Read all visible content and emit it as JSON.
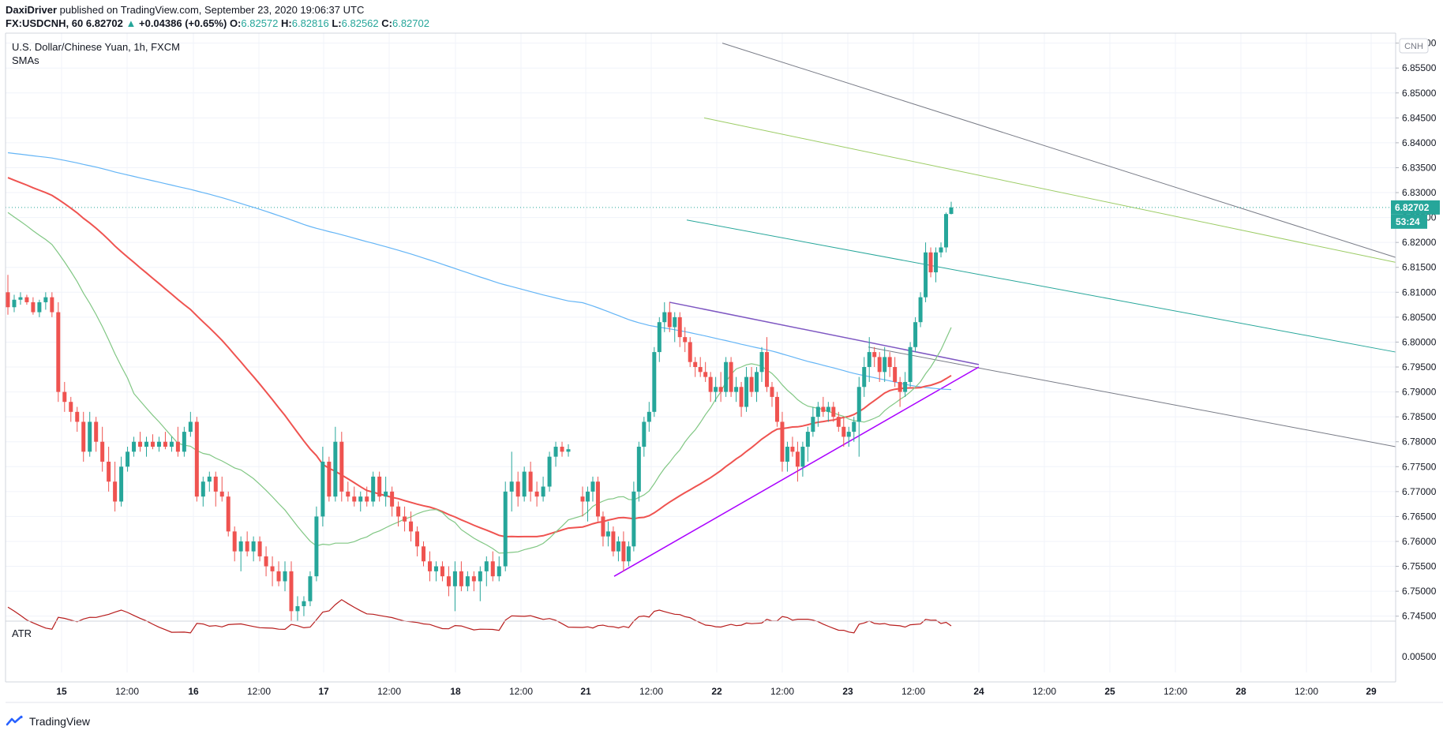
{
  "header": {
    "author": "DaxiDriver",
    "published": "published on TradingView.com, September 23, 2020 19:06:37 UTC",
    "symbol": "FX:USDCNH, 60",
    "last": "6.82702",
    "change": "+0.04386 (+0.65%)",
    "o_label": "O:",
    "o": "6.82572",
    "h_label": "H:",
    "h": "6.82816",
    "l_label": "L:",
    "l": "6.82562",
    "c_label": "C:",
    "c": "6.82702"
  },
  "legend": {
    "title": "U.S. Dollar/Chinese Yuan, 1h, FXCM",
    "indicator": "SMAs"
  },
  "atr_label": "ATR",
  "currency_badge": "CNH",
  "price_badge": "6.82702",
  "countdown_badge": "53:24",
  "footer": {
    "brand": "TradingView"
  },
  "colors": {
    "up": "#26a69a",
    "down": "#ef5350",
    "sma_fast": "#81c784",
    "sma_mid": "#ef5350",
    "sma_slow": "#64b5f6",
    "atr": "#b71c1c",
    "trend_upper": "#7e57c2",
    "trend_lower": "#aa00ff",
    "channel_grey": "#787b86",
    "channel_green": "#9ccc65",
    "channel_teal": "#26a69a"
  },
  "chart_data": {
    "type": "candlestick",
    "title": "U.S. Dollar/Chinese Yuan, 1h, FXCM",
    "ylim": [
      6.744,
      6.862
    ],
    "y_ticks": [
      "6.74500",
      "6.75000",
      "6.75500",
      "6.76000",
      "6.76500",
      "6.77000",
      "6.77500",
      "6.78000",
      "6.78500",
      "6.79000",
      "6.79500",
      "6.80000",
      "6.80500",
      "6.81000",
      "6.81500",
      "6.82000",
      "6.82500",
      "6.83000",
      "6.83500",
      "6.84000",
      "6.84500",
      "6.85000",
      "6.85500",
      "6.86000"
    ],
    "x_ticks": [
      "15",
      "12:00",
      "16",
      "12:00",
      "17",
      "12:00",
      "18",
      "12:00",
      "21",
      "12:00",
      "22",
      "12:00",
      "23",
      "12:00",
      "24",
      "12:00",
      "25",
      "12:00",
      "28",
      "12:00",
      "29"
    ],
    "atr_tick": "0.00500",
    "candles": [
      {
        "o": 6.81,
        "h": 6.8135,
        "l": 6.8055,
        "c": 6.807
      },
      {
        "o": 6.807,
        "h": 6.8095,
        "l": 6.806,
        "c": 6.8085
      },
      {
        "o": 6.8085,
        "h": 6.81,
        "l": 6.8075,
        "c": 6.809
      },
      {
        "o": 6.809,
        "h": 6.8095,
        "l": 6.8075,
        "c": 6.808
      },
      {
        "o": 6.808,
        "h": 6.809,
        "l": 6.8055,
        "c": 6.806
      },
      {
        "o": 6.806,
        "h": 6.8085,
        "l": 6.805,
        "c": 6.808
      },
      {
        "o": 6.808,
        "h": 6.81,
        "l": 6.8065,
        "c": 6.809
      },
      {
        "o": 6.809,
        "h": 6.81,
        "l": 6.805,
        "c": 6.806
      },
      {
        "o": 6.806,
        "h": 6.808,
        "l": 6.788,
        "c": 6.79
      },
      {
        "o": 6.79,
        "h": 6.792,
        "l": 6.786,
        "c": 6.788
      },
      {
        "o": 6.788,
        "h": 6.789,
        "l": 6.784,
        "c": 6.786
      },
      {
        "o": 6.786,
        "h": 6.787,
        "l": 6.782,
        "c": 6.784
      },
      {
        "o": 6.784,
        "h": 6.786,
        "l": 6.776,
        "c": 6.778
      },
      {
        "o": 6.778,
        "h": 6.786,
        "l": 6.777,
        "c": 6.784
      },
      {
        "o": 6.784,
        "h": 6.785,
        "l": 6.778,
        "c": 6.78
      },
      {
        "o": 6.78,
        "h": 6.783,
        "l": 6.774,
        "c": 6.776
      },
      {
        "o": 6.776,
        "h": 6.779,
        "l": 6.77,
        "c": 6.772
      },
      {
        "o": 6.772,
        "h": 6.776,
        "l": 6.766,
        "c": 6.768
      },
      {
        "o": 6.768,
        "h": 6.777,
        "l": 6.767,
        "c": 6.775
      },
      {
        "o": 6.775,
        "h": 6.779,
        "l": 6.774,
        "c": 6.778
      },
      {
        "o": 6.778,
        "h": 6.781,
        "l": 6.777,
        "c": 6.78
      },
      {
        "o": 6.78,
        "h": 6.782,
        "l": 6.778,
        "c": 6.779
      },
      {
        "o": 6.779,
        "h": 6.781,
        "l": 6.777,
        "c": 6.78
      },
      {
        "o": 6.78,
        "h": 6.7815,
        "l": 6.7785,
        "c": 6.779
      },
      {
        "o": 6.779,
        "h": 6.781,
        "l": 6.778,
        "c": 6.78
      },
      {
        "o": 6.78,
        "h": 6.782,
        "l": 6.7785,
        "c": 6.779
      },
      {
        "o": 6.779,
        "h": 6.781,
        "l": 6.778,
        "c": 6.78
      },
      {
        "o": 6.78,
        "h": 6.783,
        "l": 6.777,
        "c": 6.778
      },
      {
        "o": 6.778,
        "h": 6.783,
        "l": 6.777,
        "c": 6.782
      },
      {
        "o": 6.782,
        "h": 6.786,
        "l": 6.781,
        "c": 6.784
      },
      {
        "o": 6.784,
        "h": 6.785,
        "l": 6.768,
        "c": 6.769
      },
      {
        "o": 6.769,
        "h": 6.773,
        "l": 6.767,
        "c": 6.772
      },
      {
        "o": 6.772,
        "h": 6.774,
        "l": 6.77,
        "c": 6.773
      },
      {
        "o": 6.773,
        "h": 6.774,
        "l": 6.767,
        "c": 6.77
      },
      {
        "o": 6.77,
        "h": 6.773,
        "l": 6.768,
        "c": 6.769
      },
      {
        "o": 6.769,
        "h": 6.77,
        "l": 6.761,
        "c": 6.762
      },
      {
        "o": 6.762,
        "h": 6.763,
        "l": 6.756,
        "c": 6.758
      },
      {
        "o": 6.758,
        "h": 6.761,
        "l": 6.754,
        "c": 6.76
      },
      {
        "o": 6.76,
        "h": 6.762,
        "l": 6.757,
        "c": 6.758
      },
      {
        "o": 6.758,
        "h": 6.761,
        "l": 6.756,
        "c": 6.76
      },
      {
        "o": 6.76,
        "h": 6.761,
        "l": 6.756,
        "c": 6.757
      },
      {
        "o": 6.757,
        "h": 6.759,
        "l": 6.753,
        "c": 6.755
      },
      {
        "o": 6.755,
        "h": 6.757,
        "l": 6.751,
        "c": 6.754
      },
      {
        "o": 6.754,
        "h": 6.756,
        "l": 6.751,
        "c": 6.752
      },
      {
        "o": 6.752,
        "h": 6.756,
        "l": 6.75,
        "c": 6.754
      },
      {
        "o": 6.754,
        "h": 6.756,
        "l": 6.744,
        "c": 6.746
      },
      {
        "o": 6.746,
        "h": 6.749,
        "l": 6.744,
        "c": 6.747
      },
      {
        "o": 6.747,
        "h": 6.749,
        "l": 6.745,
        "c": 6.748
      },
      {
        "o": 6.748,
        "h": 6.754,
        "l": 6.747,
        "c": 6.753
      },
      {
        "o": 6.753,
        "h": 6.767,
        "l": 6.752,
        "c": 6.765
      },
      {
        "o": 6.765,
        "h": 6.779,
        "l": 6.763,
        "c": 6.776
      },
      {
        "o": 6.776,
        "h": 6.777,
        "l": 6.768,
        "c": 6.769
      },
      {
        "o": 6.769,
        "h": 6.783,
        "l": 6.768,
        "c": 6.78
      },
      {
        "o": 6.78,
        "h": 6.782,
        "l": 6.768,
        "c": 6.77
      },
      {
        "o": 6.77,
        "h": 6.772,
        "l": 6.768,
        "c": 6.769
      },
      {
        "o": 6.769,
        "h": 6.771,
        "l": 6.767,
        "c": 6.768
      },
      {
        "o": 6.768,
        "h": 6.77,
        "l": 6.766,
        "c": 6.769
      },
      {
        "o": 6.769,
        "h": 6.771,
        "l": 6.767,
        "c": 6.768
      },
      {
        "o": 6.768,
        "h": 6.774,
        "l": 6.767,
        "c": 6.773
      },
      {
        "o": 6.773,
        "h": 6.774,
        "l": 6.768,
        "c": 6.769
      },
      {
        "o": 6.769,
        "h": 6.773,
        "l": 6.767,
        "c": 6.77
      },
      {
        "o": 6.77,
        "h": 6.771,
        "l": 6.765,
        "c": 6.767
      },
      {
        "o": 6.767,
        "h": 6.768,
        "l": 6.763,
        "c": 6.765
      },
      {
        "o": 6.765,
        "h": 6.767,
        "l": 6.762,
        "c": 6.764
      },
      {
        "o": 6.764,
        "h": 6.766,
        "l": 6.76,
        "c": 6.762
      },
      {
        "o": 6.762,
        "h": 6.763,
        "l": 6.757,
        "c": 6.759
      },
      {
        "o": 6.759,
        "h": 6.76,
        "l": 6.755,
        "c": 6.756
      },
      {
        "o": 6.756,
        "h": 6.758,
        "l": 6.752,
        "c": 6.754
      },
      {
        "o": 6.754,
        "h": 6.756,
        "l": 6.752,
        "c": 6.755
      },
      {
        "o": 6.755,
        "h": 6.756,
        "l": 6.752,
        "c": 6.753
      },
      {
        "o": 6.753,
        "h": 6.755,
        "l": 6.749,
        "c": 6.751
      },
      {
        "o": 6.751,
        "h": 6.756,
        "l": 6.746,
        "c": 6.754
      },
      {
        "o": 6.754,
        "h": 6.756,
        "l": 6.75,
        "c": 6.751
      },
      {
        "o": 6.751,
        "h": 6.754,
        "l": 6.75,
        "c": 6.753
      },
      {
        "o": 6.753,
        "h": 6.754,
        "l": 6.75,
        "c": 6.752
      },
      {
        "o": 6.752,
        "h": 6.755,
        "l": 6.748,
        "c": 6.754
      },
      {
        "o": 6.754,
        "h": 6.757,
        "l": 6.751,
        "c": 6.756
      },
      {
        "o": 6.756,
        "h": 6.758,
        "l": 6.752,
        "c": 6.753
      },
      {
        "o": 6.753,
        "h": 6.757,
        "l": 6.752,
        "c": 6.755
      },
      {
        "o": 6.755,
        "h": 6.772,
        "l": 6.754,
        "c": 6.77
      },
      {
        "o": 6.77,
        "h": 6.778,
        "l": 6.766,
        "c": 6.772
      },
      {
        "o": 6.772,
        "h": 6.774,
        "l": 6.767,
        "c": 6.769
      },
      {
        "o": 6.769,
        "h": 6.775,
        "l": 6.768,
        "c": 6.774
      },
      {
        "o": 6.774,
        "h": 6.776,
        "l": 6.768,
        "c": 6.77
      },
      {
        "o": 6.77,
        "h": 6.772,
        "l": 6.767,
        "c": 6.769
      },
      {
        "o": 6.769,
        "h": 6.773,
        "l": 6.768,
        "c": 6.771
      },
      {
        "o": 6.771,
        "h": 6.778,
        "l": 6.77,
        "c": 6.777
      },
      {
        "o": 6.777,
        "h": 6.78,
        "l": 6.775,
        "c": 6.779
      },
      {
        "o": 6.779,
        "h": 6.78,
        "l": 6.777,
        "c": 6.778
      },
      {
        "o": 6.778,
        "h": 6.7795,
        "l": 6.777,
        "c": 6.7785
      },
      {
        "o": 6.769,
        "h": 6.771,
        "l": 6.765,
        "c": 6.768
      },
      {
        "o": 6.768,
        "h": 6.771,
        "l": 6.764,
        "c": 6.77
      },
      {
        "o": 6.77,
        "h": 6.773,
        "l": 6.768,
        "c": 6.772
      },
      {
        "o": 6.772,
        "h": 6.773,
        "l": 6.764,
        "c": 6.765
      },
      {
        "o": 6.765,
        "h": 6.766,
        "l": 6.759,
        "c": 6.761
      },
      {
        "o": 6.761,
        "h": 6.764,
        "l": 6.759,
        "c": 6.762
      },
      {
        "o": 6.762,
        "h": 6.763,
        "l": 6.757,
        "c": 6.758
      },
      {
        "o": 6.758,
        "h": 6.761,
        "l": 6.756,
        "c": 6.76
      },
      {
        "o": 6.76,
        "h": 6.762,
        "l": 6.754,
        "c": 6.756
      },
      {
        "o": 6.756,
        "h": 6.76,
        "l": 6.755,
        "c": 6.759
      },
      {
        "o": 6.759,
        "h": 6.772,
        "l": 6.758,
        "c": 6.77
      },
      {
        "o": 6.77,
        "h": 6.78,
        "l": 6.768,
        "c": 6.779
      },
      {
        "o": 6.779,
        "h": 6.785,
        "l": 6.777,
        "c": 6.784
      },
      {
        "o": 6.784,
        "h": 6.788,
        "l": 6.782,
        "c": 6.786
      },
      {
        "o": 6.786,
        "h": 6.799,
        "l": 6.785,
        "c": 6.798
      },
      {
        "o": 6.798,
        "h": 6.805,
        "l": 6.796,
        "c": 6.804
      },
      {
        "o": 6.804,
        "h": 6.808,
        "l": 6.802,
        "c": 6.806
      },
      {
        "o": 6.806,
        "h": 6.808,
        "l": 6.802,
        "c": 6.803
      },
      {
        "o": 6.803,
        "h": 6.806,
        "l": 6.8,
        "c": 6.805
      },
      {
        "o": 6.805,
        "h": 6.806,
        "l": 6.799,
        "c": 6.801
      },
      {
        "o": 6.801,
        "h": 6.803,
        "l": 6.798,
        "c": 6.8
      },
      {
        "o": 6.8,
        "h": 6.801,
        "l": 6.795,
        "c": 6.796
      },
      {
        "o": 6.796,
        "h": 6.797,
        "l": 6.793,
        "c": 6.795
      },
      {
        "o": 6.795,
        "h": 6.797,
        "l": 6.793,
        "c": 6.794
      },
      {
        "o": 6.794,
        "h": 6.796,
        "l": 6.792,
        "c": 6.793
      },
      {
        "o": 6.793,
        "h": 6.794,
        "l": 6.788,
        "c": 6.79
      },
      {
        "o": 6.79,
        "h": 6.793,
        "l": 6.788,
        "c": 6.791
      },
      {
        "o": 6.791,
        "h": 6.794,
        "l": 6.788,
        "c": 6.79
      },
      {
        "o": 6.79,
        "h": 6.797,
        "l": 6.789,
        "c": 6.796
      },
      {
        "o": 6.796,
        "h": 6.797,
        "l": 6.789,
        "c": 6.79
      },
      {
        "o": 6.79,
        "h": 6.793,
        "l": 6.788,
        "c": 6.791
      },
      {
        "o": 6.791,
        "h": 6.792,
        "l": 6.785,
        "c": 6.787
      },
      {
        "o": 6.787,
        "h": 6.795,
        "l": 6.786,
        "c": 6.793
      },
      {
        "o": 6.793,
        "h": 6.795,
        "l": 6.789,
        "c": 6.79
      },
      {
        "o": 6.79,
        "h": 6.795,
        "l": 6.788,
        "c": 6.794
      },
      {
        "o": 6.794,
        "h": 6.799,
        "l": 6.792,
        "c": 6.798
      },
      {
        "o": 6.798,
        "h": 6.801,
        "l": 6.79,
        "c": 6.791
      },
      {
        "o": 6.791,
        "h": 6.792,
        "l": 6.787,
        "c": 6.789
      },
      {
        "o": 6.789,
        "h": 6.79,
        "l": 6.783,
        "c": 6.784
      },
      {
        "o": 6.784,
        "h": 6.786,
        "l": 6.774,
        "c": 6.776
      },
      {
        "o": 6.776,
        "h": 6.78,
        "l": 6.774,
        "c": 6.779
      },
      {
        "o": 6.779,
        "h": 6.781,
        "l": 6.777,
        "c": 6.778
      },
      {
        "o": 6.778,
        "h": 6.78,
        "l": 6.772,
        "c": 6.775
      },
      {
        "o": 6.775,
        "h": 6.78,
        "l": 6.773,
        "c": 6.779
      },
      {
        "o": 6.779,
        "h": 6.783,
        "l": 6.776,
        "c": 6.782
      },
      {
        "o": 6.782,
        "h": 6.787,
        "l": 6.781,
        "c": 6.785
      },
      {
        "o": 6.785,
        "h": 6.788,
        "l": 6.783,
        "c": 6.787
      },
      {
        "o": 6.787,
        "h": 6.789,
        "l": 6.785,
        "c": 6.786
      },
      {
        "o": 6.786,
        "h": 6.788,
        "l": 6.784,
        "c": 6.787
      },
      {
        "o": 6.787,
        "h": 6.788,
        "l": 6.784,
        "c": 6.785
      },
      {
        "o": 6.785,
        "h": 6.786,
        "l": 6.782,
        "c": 6.783
      },
      {
        "o": 6.783,
        "h": 6.785,
        "l": 6.779,
        "c": 6.781
      },
      {
        "o": 6.781,
        "h": 6.783,
        "l": 6.779,
        "c": 6.782
      },
      {
        "o": 6.782,
        "h": 6.785,
        "l": 6.78,
        "c": 6.784
      },
      {
        "o": 6.784,
        "h": 6.793,
        "l": 6.777,
        "c": 6.791
      },
      {
        "o": 6.791,
        "h": 6.797,
        "l": 6.789,
        "c": 6.795
      },
      {
        "o": 6.795,
        "h": 6.801,
        "l": 6.792,
        "c": 6.798
      },
      {
        "o": 6.798,
        "h": 6.799,
        "l": 6.795,
        "c": 6.797
      },
      {
        "o": 6.797,
        "h": 6.798,
        "l": 6.792,
        "c": 6.794
      },
      {
        "o": 6.794,
        "h": 6.799,
        "l": 6.792,
        "c": 6.797
      },
      {
        "o": 6.797,
        "h": 6.798,
        "l": 6.793,
        "c": 6.795
      },
      {
        "o": 6.795,
        "h": 6.797,
        "l": 6.791,
        "c": 6.792
      },
      {
        "o": 6.792,
        "h": 6.793,
        "l": 6.787,
        "c": 6.79
      },
      {
        "o": 6.79,
        "h": 6.794,
        "l": 6.789,
        "c": 6.792
      },
      {
        "o": 6.792,
        "h": 6.8,
        "l": 6.791,
        "c": 6.799
      },
      {
        "o": 6.799,
        "h": 6.805,
        "l": 6.798,
        "c": 6.804
      },
      {
        "o": 6.804,
        "h": 6.81,
        "l": 6.803,
        "c": 6.809
      },
      {
        "o": 6.809,
        "h": 6.82,
        "l": 6.808,
        "c": 6.818
      },
      {
        "o": 6.818,
        "h": 6.819,
        "l": 6.813,
        "c": 6.814
      },
      {
        "o": 6.814,
        "h": 6.819,
        "l": 6.812,
        "c": 6.818
      },
      {
        "o": 6.818,
        "h": 6.82,
        "l": 6.817,
        "c": 6.819
      },
      {
        "o": 6.819,
        "h": 6.826,
        "l": 6.818,
        "c": 6.8257
      },
      {
        "o": 6.82572,
        "h": 6.82816,
        "l": 6.82562,
        "c": 6.82702
      }
    ]
  }
}
